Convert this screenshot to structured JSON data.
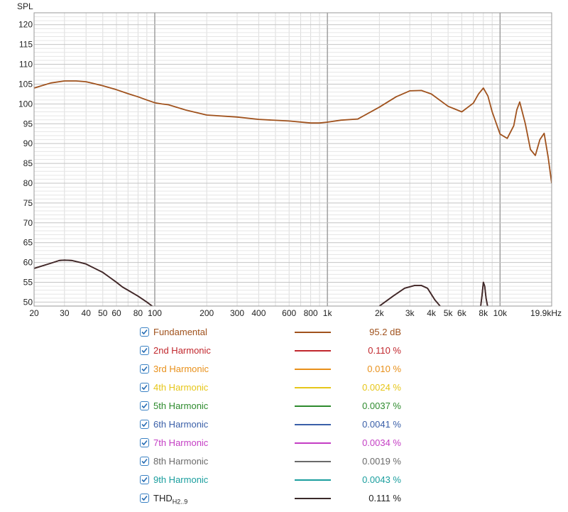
{
  "chart_data": {
    "type": "line",
    "ylabel": "SPL",
    "x_unit": "kHz",
    "xlim": [
      20,
      19900
    ],
    "ylim": [
      49,
      123
    ],
    "x_scale": "log",
    "grid": true,
    "y_ticks": [
      120,
      115,
      110,
      105,
      100,
      95,
      90,
      85,
      80,
      75,
      70,
      65,
      60,
      55,
      50
    ],
    "x_ticks": [
      {
        "value": 20,
        "label": "20"
      },
      {
        "value": 30,
        "label": "30"
      },
      {
        "value": 40,
        "label": "40"
      },
      {
        "value": 50,
        "label": "50"
      },
      {
        "value": 60,
        "label": "60"
      },
      {
        "value": 80,
        "label": "80"
      },
      {
        "value": 100,
        "label": "100"
      },
      {
        "value": 200,
        "label": "200"
      },
      {
        "value": 300,
        "label": "300"
      },
      {
        "value": 400,
        "label": "400"
      },
      {
        "value": 600,
        "label": "600"
      },
      {
        "value": 800,
        "label": "800"
      },
      {
        "value": 1000,
        "label": "1k"
      },
      {
        "value": 2000,
        "label": "2k"
      },
      {
        "value": 3000,
        "label": "3k"
      },
      {
        "value": 4000,
        "label": "4k"
      },
      {
        "value": 5000,
        "label": "5k"
      },
      {
        "value": 6000,
        "label": "6k"
      },
      {
        "value": 8000,
        "label": "8k"
      },
      {
        "value": 10000,
        "label": "10k"
      },
      {
        "value": 19900,
        "label": "19.9kHz"
      }
    ],
    "series": [
      {
        "name": "Fundamental",
        "color": "#a0521d",
        "x": [
          20,
          25,
          30,
          35,
          40,
          50,
          60,
          70,
          80,
          90,
          100,
          110,
          120,
          150,
          200,
          300,
          400,
          600,
          800,
          900,
          1000,
          1200,
          1500,
          2000,
          2500,
          3000,
          3500,
          4000,
          5000,
          6000,
          7000,
          7500,
          8000,
          8500,
          9000,
          10000,
          11000,
          12000,
          12500,
          13000,
          14000,
          15000,
          16000,
          17000,
          18000,
          19000,
          19900
        ],
        "values": [
          104.0,
          105.3,
          105.8,
          105.8,
          105.6,
          104.6,
          103.6,
          102.6,
          101.8,
          101.0,
          100.3,
          100.0,
          99.8,
          98.5,
          97.2,
          96.7,
          96.1,
          95.7,
          95.2,
          95.2,
          95.4,
          95.9,
          96.2,
          99.2,
          101.8,
          103.3,
          103.4,
          102.5,
          99.4,
          98.0,
          100.2,
          102.5,
          104.0,
          102.0,
          98.0,
          92.4,
          91.3,
          94.5,
          98.5,
          100.5,
          95.0,
          88.5,
          87.0,
          91.0,
          92.6,
          86.5,
          80.0
        ]
      },
      {
        "name": "2nd Harmonic",
        "color": "#c1272d",
        "x": [
          20,
          25,
          28,
          30,
          33,
          37,
          40,
          45,
          50,
          55,
          60,
          65,
          70,
          80,
          90,
          100
        ],
        "values": [
          58.5,
          59.8,
          60.5,
          60.6,
          60.5,
          60.0,
          59.6,
          58.5,
          57.5,
          56.2,
          55.0,
          53.8,
          53.0,
          51.5,
          50.0,
          48.5
        ],
        "segments": [
          {
            "x": [
              2000,
              2400,
              2800,
              3200,
              3500,
              3800,
              4200,
              4600
            ],
            "values": [
              49.0,
              51.5,
              53.5,
              54.2,
              54.2,
              53.5,
              50.5,
              48.5
            ]
          },
          {
            "x": [
              7700,
              7850,
              8000,
              8150,
              8300,
              8500
            ],
            "values": [
              48.5,
              51.5,
              55.0,
              54.0,
              51.0,
              48.5
            ]
          }
        ]
      },
      {
        "name": "3rd Harmonic",
        "color": "#e8901a"
      },
      {
        "name": "4th Harmonic",
        "color": "#e6c619"
      },
      {
        "name": "5th Harmonic",
        "color": "#2e8b2e"
      },
      {
        "name": "6th Harmonic",
        "color": "#3a5fa8"
      },
      {
        "name": "7th Harmonic",
        "color": "#c43ec4"
      },
      {
        "name": "8th Harmonic",
        "color": "#6a6a6a"
      },
      {
        "name": "9th Harmonic",
        "color": "#1a9e9e"
      },
      {
        "name": "THD",
        "color": "#3a2a2a",
        "x": [
          20,
          25,
          28,
          30,
          33,
          37,
          40,
          45,
          50,
          55,
          60,
          65,
          70,
          80,
          90,
          100
        ],
        "values": [
          58.5,
          59.8,
          60.5,
          60.6,
          60.5,
          60.0,
          59.6,
          58.5,
          57.5,
          56.2,
          55.0,
          53.8,
          53.0,
          51.5,
          50.0,
          48.5
        ],
        "segments": [
          {
            "x": [
              2000,
              2400,
              2800,
              3200,
              3500,
              3800,
              4200,
              4600
            ],
            "values": [
              49.0,
              51.5,
              53.5,
              54.2,
              54.2,
              53.5,
              50.5,
              48.5
            ]
          },
          {
            "x": [
              7700,
              7850,
              8000,
              8150,
              8300,
              8500
            ],
            "values": [
              48.5,
              51.5,
              55.0,
              54.0,
              51.0,
              48.5
            ]
          }
        ]
      }
    ]
  },
  "legend": [
    {
      "name": "Fundamental",
      "sub": "",
      "value": "95.2 dB",
      "color": "#a0521d",
      "name_color": "#a0521d",
      "checked": true
    },
    {
      "name": "2nd Harmonic",
      "sub": "",
      "value": "0.110 %",
      "color": "#c1272d",
      "name_color": "#c1272d",
      "checked": true
    },
    {
      "name": "3rd Harmonic",
      "sub": "",
      "value": "0.010 %",
      "color": "#e8901a",
      "name_color": "#e8901a",
      "checked": true
    },
    {
      "name": "4th Harmonic",
      "sub": "",
      "value": "0.0024 %",
      "color": "#e6c619",
      "name_color": "#e6c619",
      "checked": true
    },
    {
      "name": "5th Harmonic",
      "sub": "",
      "value": "0.0037 %",
      "color": "#2e8b2e",
      "name_color": "#2e8b2e",
      "checked": true
    },
    {
      "name": "6th Harmonic",
      "sub": "",
      "value": "0.0041 %",
      "color": "#3a5fa8",
      "name_color": "#3a5fa8",
      "checked": true
    },
    {
      "name": "7th Harmonic",
      "sub": "",
      "value": "0.0034 %",
      "color": "#c43ec4",
      "name_color": "#c43ec4",
      "checked": true
    },
    {
      "name": "8th Harmonic",
      "sub": "",
      "value": "0.0019 %",
      "color": "#6a6a6a",
      "name_color": "#6a6a6a",
      "checked": true
    },
    {
      "name": "9th Harmonic",
      "sub": "",
      "value": "0.0043 %",
      "color": "#1a9e9e",
      "name_color": "#1a9e9e",
      "checked": true
    },
    {
      "name": "THD",
      "sub": "H2..9",
      "value": "0.111 %",
      "color": "#3a2a2a",
      "name_color": "#222222",
      "checked": true
    }
  ]
}
